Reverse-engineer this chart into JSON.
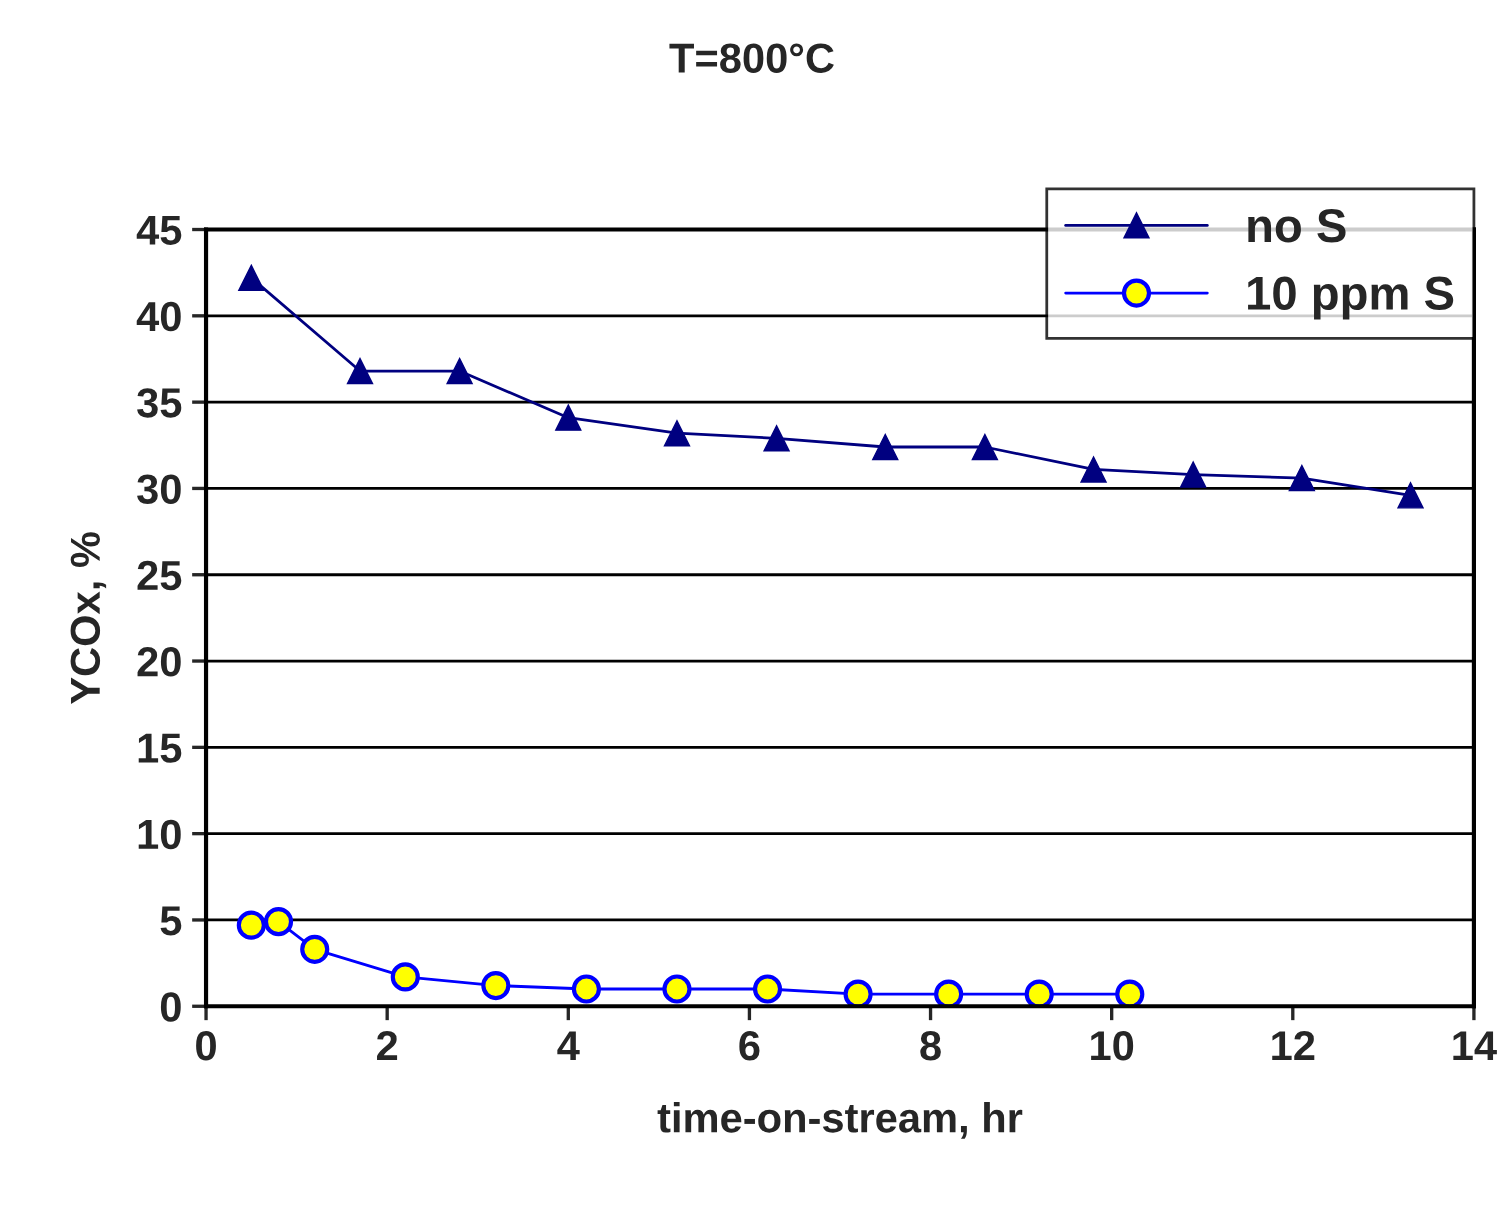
{
  "chart_data": {
    "type": "line",
    "title": "T=800°C",
    "xlabel": "time-on-stream, hr",
    "ylabel": "YCOx, %",
    "xlim": [
      0,
      14
    ],
    "xticks": [
      0,
      2,
      4,
      6,
      8,
      10,
      12,
      14
    ],
    "ylim": [
      0,
      45
    ],
    "yticks": [
      0,
      5,
      10,
      15,
      20,
      25,
      30,
      35,
      40,
      45
    ],
    "grid": "y",
    "legend": "top right",
    "line_style": "solid",
    "series": [
      {
        "name": "no S",
        "color": "#000080",
        "marker": "triangle",
        "x": [
          0.5,
          1.7,
          2.8,
          4.0,
          5.2,
          6.3,
          7.5,
          8.6,
          9.8,
          10.9,
          12.1,
          13.3
        ],
        "values": [
          42.2,
          36.8,
          36.8,
          34.1,
          33.2,
          32.9,
          32.4,
          32.4,
          31.1,
          30.8,
          30.6,
          29.6
        ]
      },
      {
        "name": "10 ppm S",
        "color": "#0000ff",
        "marker": "circle",
        "x": [
          0.5,
          0.8,
          1.2,
          2.2,
          3.2,
          4.2,
          5.2,
          6.2,
          7.2,
          8.2,
          9.2,
          10.2
        ],
        "values": [
          4.7,
          4.9,
          3.3,
          1.7,
          1.2,
          1.0,
          1.0,
          1.0,
          0.7,
          0.7,
          0.7,
          0.7
        ]
      }
    ]
  }
}
